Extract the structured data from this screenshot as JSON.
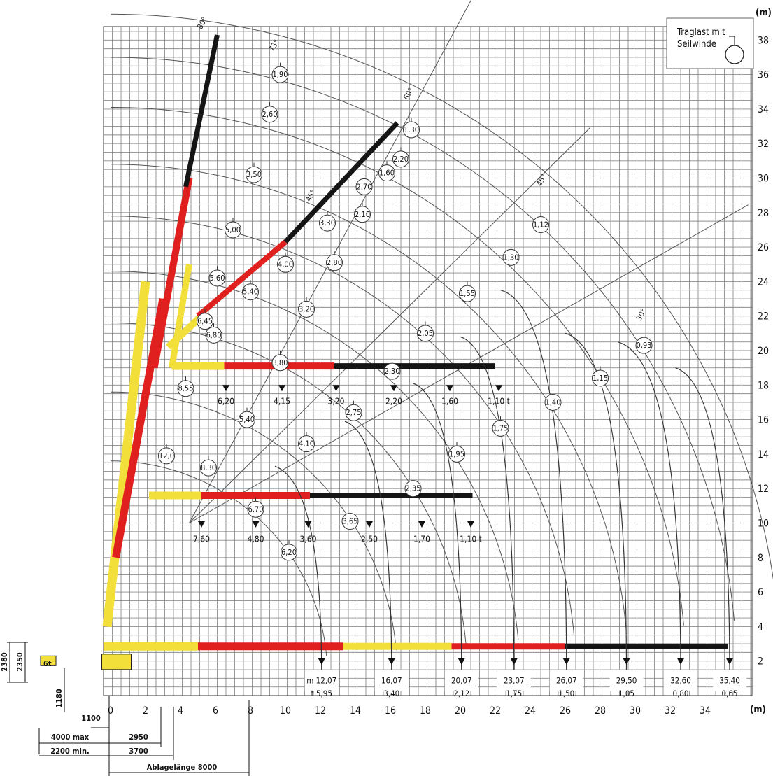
{
  "axis": {
    "x_unit": "(m)",
    "y_unit": "(m)",
    "x_ticks": [
      "0",
      "2",
      "4",
      "6",
      "8",
      "10",
      "12",
      "14",
      "16",
      "18",
      "20",
      "22",
      "24",
      "26",
      "28",
      "30",
      "32",
      "34"
    ],
    "y_ticks": [
      "2",
      "4",
      "6",
      "8",
      "10",
      "12",
      "14",
      "16",
      "18",
      "20",
      "22",
      "24",
      "26",
      "28",
      "30",
      "32",
      "34",
      "36",
      "38"
    ]
  },
  "legend": {
    "line1": "Traglast mit",
    "line2": "Seilwinde"
  },
  "angle_labels": [
    "80°",
    "73°",
    "60°",
    "45°",
    "45°",
    "30°"
  ],
  "bubbles": [
    {
      "v": "1,90"
    },
    {
      "v": "2,60"
    },
    {
      "v": "3,50"
    },
    {
      "v": "5,00"
    },
    {
      "v": "5,60"
    },
    {
      "v": "6,45"
    },
    {
      "v": "8,55"
    },
    {
      "v": "12,0"
    },
    {
      "v": "1,30"
    },
    {
      "v": "2,20"
    },
    {
      "v": "1,60"
    },
    {
      "v": "2,70"
    },
    {
      "v": "2,10"
    },
    {
      "v": "3,30"
    },
    {
      "v": "2,80"
    },
    {
      "v": "4,00"
    },
    {
      "v": "5,40"
    },
    {
      "v": "6,80"
    },
    {
      "v": "3,20"
    },
    {
      "v": "3,80"
    },
    {
      "v": "5,40"
    },
    {
      "v": "8,30"
    },
    {
      "v": "1,12"
    },
    {
      "v": "1,30"
    },
    {
      "v": "1,55"
    },
    {
      "v": "2,05"
    },
    {
      "v": "2,30"
    },
    {
      "v": "2,75"
    },
    {
      "v": "4,10"
    },
    {
      "v": "6,70"
    },
    {
      "v": "0,93"
    },
    {
      "v": "1,15"
    },
    {
      "v": "1,40"
    },
    {
      "v": "1,75"
    },
    {
      "v": "1,95"
    },
    {
      "v": "2,35"
    },
    {
      "v": "3,65"
    },
    {
      "v": "6,20"
    }
  ],
  "row18_loads": [
    "6,20",
    "4,15",
    "3,20",
    "2,20",
    "1,60",
    "1,10 t"
  ],
  "row11_loads": [
    "7,60",
    "4,80",
    "3,60",
    "2,50",
    "1,70",
    "1,10 t"
  ],
  "reach_labels": [
    {
      "top": "m 12,07",
      "bot": "t  5,95"
    },
    {
      "top": "16,07",
      "bot": "3,40"
    },
    {
      "top": "20,07",
      "bot": "2,12"
    },
    {
      "top": "23,07",
      "bot": "1,75"
    },
    {
      "top": "26,07",
      "bot": "1,50"
    },
    {
      "top": "29,50",
      "bot": "1,05"
    },
    {
      "top": "32,60",
      "bot": "0,80"
    },
    {
      "top": "35,40",
      "bot": "0,65"
    }
  ],
  "dims": {
    "d2380": "2380",
    "d2350": "2350",
    "d1180": "1180",
    "d6t": "6t",
    "d1100": "1100",
    "d4000": "4000 max",
    "d2950": "2950",
    "d2200": "2200 min.",
    "d3700": "3700",
    "ablage": "Ablagelänge 8000"
  },
  "colors": {
    "yellow": "#f3df3a",
    "red": "#e0201e",
    "black": "#151515"
  }
}
